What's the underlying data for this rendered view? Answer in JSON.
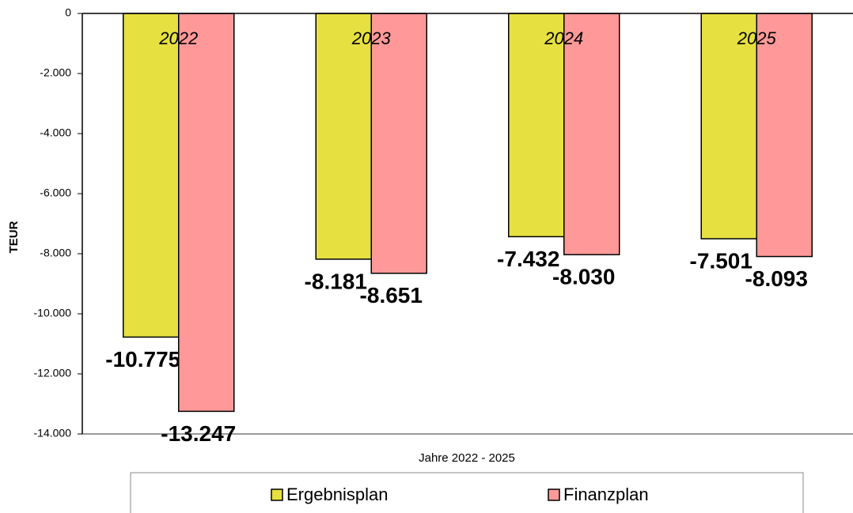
{
  "chart_data": {
    "type": "bar",
    "y_label": "TEUR",
    "x_label": "Jahre 2022 - 2025",
    "categories": [
      "2022",
      "2023",
      "2024",
      "2025"
    ],
    "series": [
      {
        "name": "Ergebnisplan",
        "color": "#e6e040",
        "values": [
          -10775,
          -8181,
          -7432,
          -7501
        ],
        "value_labels": [
          "-10.775",
          "-8.181",
          "-7.432",
          "-7.501"
        ]
      },
      {
        "name": "Finanzplan",
        "color": "#ff9999",
        "values": [
          -13247,
          -8651,
          -8030,
          -8093
        ],
        "value_labels": [
          "-13.247",
          "-8.651",
          "-8.030",
          "-8.093"
        ]
      }
    ],
    "ylim": [
      -14000,
      0
    ],
    "yticks": [
      0,
      {
        "value": -2000,
        "label": "-2.000"
      },
      {
        "value": -4000,
        "label": "-4.000"
      },
      {
        "value": -6000,
        "label": "-6.000"
      },
      {
        "value": -8000,
        "label": "-8.000"
      },
      {
        "value": -10000,
        "label": "-10.000"
      },
      {
        "value": -12000,
        "label": "-12.000"
      },
      {
        "value": -14000,
        "label": "-14.000"
      }
    ],
    "legend": "bottom"
  }
}
